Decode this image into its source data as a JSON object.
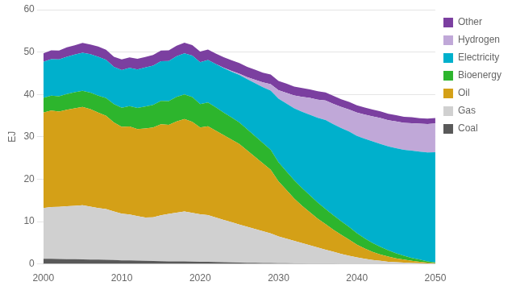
{
  "chart_data": {
    "type": "area",
    "stacked": true,
    "ylabel": "EJ",
    "x": [
      2000,
      2001,
      2002,
      2003,
      2004,
      2005,
      2006,
      2007,
      2008,
      2009,
      2010,
      2011,
      2012,
      2013,
      2014,
      2015,
      2016,
      2017,
      2018,
      2019,
      2020,
      2021,
      2022,
      2023,
      2024,
      2025,
      2026,
      2027,
      2028,
      2029,
      2030,
      2031,
      2032,
      2033,
      2034,
      2035,
      2036,
      2037,
      2038,
      2039,
      2040,
      2041,
      2042,
      2043,
      2044,
      2045,
      2046,
      2047,
      2048,
      2049,
      2050
    ],
    "series": [
      {
        "name": "Coal",
        "color": "#595959",
        "values": [
          1.2,
          1.2,
          1.15,
          1.1,
          1.1,
          1.05,
          1.0,
          1.0,
          0.95,
          0.9,
          0.85,
          0.85,
          0.8,
          0.75,
          0.7,
          0.65,
          0.6,
          0.6,
          0.6,
          0.55,
          0.5,
          0.5,
          0.45,
          0.4,
          0.35,
          0.3,
          0.28,
          0.25,
          0.22,
          0.2,
          0.17,
          0.15,
          0.13,
          0.11,
          0.09,
          0.07,
          0.06,
          0.05,
          0.04,
          0.03,
          0.02,
          0.02,
          0.01,
          0.01,
          0.01,
          0.01,
          0.01,
          0.01,
          0.0,
          0.0,
          0.0
        ]
      },
      {
        "name": "Gas",
        "color": "#d0d0d0",
        "values": [
          12.0,
          12.2,
          12.3,
          12.5,
          12.6,
          12.8,
          12.5,
          12.2,
          12.0,
          11.5,
          11.0,
          10.8,
          10.5,
          10.2,
          10.3,
          10.8,
          11.2,
          11.5,
          11.8,
          11.5,
          11.2,
          11.0,
          10.5,
          10.0,
          9.5,
          9.0,
          8.5,
          8.0,
          7.5,
          7.0,
          6.3,
          5.8,
          5.3,
          4.8,
          4.3,
          3.8,
          3.3,
          2.8,
          2.3,
          1.9,
          1.5,
          1.2,
          0.9,
          0.7,
          0.5,
          0.4,
          0.3,
          0.2,
          0.15,
          0.1,
          0.05
        ]
      },
      {
        "name": "Oil",
        "color": "#d4a017",
        "values": [
          22.5,
          22.8,
          22.5,
          22.8,
          23.0,
          23.2,
          23.0,
          22.5,
          22.0,
          21.0,
          20.5,
          20.8,
          20.5,
          21.0,
          21.2,
          21.5,
          21.0,
          21.5,
          21.8,
          21.5,
          20.5,
          21.0,
          20.5,
          20.0,
          19.5,
          19.0,
          18.0,
          17.0,
          16.0,
          15.0,
          13.0,
          11.5,
          10.0,
          8.8,
          7.8,
          6.8,
          6.0,
          5.2,
          4.5,
          3.8,
          3.0,
          2.4,
          1.9,
          1.5,
          1.2,
          0.9,
          0.7,
          0.5,
          0.35,
          0.2,
          0.1
        ]
      },
      {
        "name": "Bioenergy",
        "color": "#2db52d",
        "values": [
          3.5,
          3.5,
          3.6,
          3.7,
          3.8,
          3.8,
          3.9,
          4.0,
          4.2,
          4.3,
          4.5,
          4.8,
          5.0,
          5.2,
          5.3,
          5.5,
          5.6,
          5.8,
          5.8,
          5.8,
          5.5,
          5.6,
          5.5,
          5.3,
          5.2,
          5.1,
          5.0,
          4.9,
          4.8,
          4.7,
          4.5,
          4.4,
          4.3,
          4.2,
          4.0,
          3.8,
          3.6,
          3.4,
          3.2,
          3.0,
          2.7,
          2.4,
          2.1,
          1.8,
          1.5,
          1.2,
          0.9,
          0.7,
          0.5,
          0.3,
          0.2
        ]
      },
      {
        "name": "Electricity",
        "color": "#00b0cc",
        "values": [
          8.5,
          8.6,
          8.7,
          8.8,
          8.9,
          9.0,
          9.1,
          9.2,
          9.0,
          8.8,
          8.9,
          9.0,
          9.1,
          9.2,
          9.3,
          9.4,
          9.5,
          9.6,
          9.7,
          9.8,
          9.9,
          10.0,
          10.2,
          10.5,
          10.8,
          11.2,
          11.8,
          12.5,
          13.2,
          14.0,
          15.0,
          16.0,
          17.0,
          18.0,
          19.0,
          20.0,
          21.0,
          21.5,
          22.0,
          22.5,
          23.0,
          23.5,
          24.0,
          24.3,
          24.5,
          24.8,
          25.0,
          25.3,
          25.5,
          25.7,
          26.0
        ]
      },
      {
        "name": "Hydrogen",
        "color": "#c0a8d8",
        "values": [
          0.0,
          0.0,
          0.0,
          0.0,
          0.0,
          0.0,
          0.0,
          0.0,
          0.0,
          0.0,
          0.0,
          0.0,
          0.0,
          0.0,
          0.0,
          0.0,
          0.0,
          0.0,
          0.0,
          0.0,
          0.0,
          0.0,
          0.0,
          0.1,
          0.2,
          0.3,
          0.5,
          0.8,
          1.1,
          1.5,
          2.0,
          2.5,
          3.0,
          3.5,
          4.0,
          4.3,
          4.6,
          4.8,
          5.0,
          5.2,
          5.5,
          5.7,
          5.9,
          6.1,
          6.2,
          6.3,
          6.4,
          6.5,
          6.6,
          6.7,
          6.8
        ]
      },
      {
        "name": "Other",
        "color": "#7b3fa0",
        "values": [
          2.0,
          2.1,
          2.1,
          2.2,
          2.2,
          2.3,
          2.3,
          2.4,
          2.4,
          2.4,
          2.5,
          2.5,
          2.5,
          2.5,
          2.5,
          2.5,
          2.5,
          2.5,
          2.5,
          2.5,
          2.5,
          2.5,
          2.5,
          2.5,
          2.5,
          2.5,
          2.4,
          2.4,
          2.3,
          2.3,
          2.2,
          2.2,
          2.1,
          2.1,
          2.0,
          2.0,
          1.9,
          1.9,
          1.8,
          1.8,
          1.7,
          1.7,
          1.6,
          1.6,
          1.5,
          1.5,
          1.4,
          1.4,
          1.3,
          1.3,
          1.3
        ]
      }
    ],
    "xlim": [
      2000,
      2050
    ],
    "xticks": [
      2000,
      2010,
      2020,
      2030,
      2040,
      2050
    ],
    "ylim": [
      0,
      60
    ],
    "yticks": [
      0,
      10,
      20,
      30,
      40,
      50,
      60
    ],
    "grid": true,
    "legend": "right"
  }
}
